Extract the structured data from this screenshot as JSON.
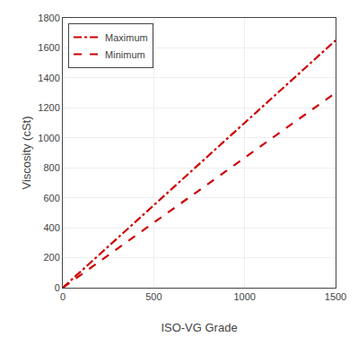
{
  "chart_data": {
    "type": "line",
    "xlabel": "ISO-VG Grade",
    "ylabel": "Viscosity (cSt)",
    "x": [
      0,
      1500
    ],
    "series": [
      {
        "name": "Maximum",
        "color": "#cc0000",
        "line_style": "dashdot",
        "values": [
          0,
          1650
        ]
      },
      {
        "name": "Minimum",
        "color": "#cc0000",
        "line_style": "dash",
        "values": [
          0,
          1300.5
        ]
      }
    ],
    "xlim": [
      0,
      1500
    ],
    "ylim": [
      0,
      1800
    ],
    "xticks": [
      0,
      500,
      1000,
      1500
    ],
    "yticks": [
      0,
      200,
      400,
      600,
      800,
      1000,
      1200,
      1400,
      1600,
      1800
    ],
    "grid": true,
    "legend": "upper left"
  }
}
